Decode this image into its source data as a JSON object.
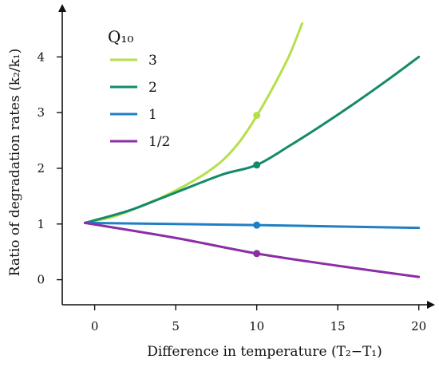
{
  "chart_data": {
    "type": "line",
    "xlabel": "Difference in temperature (T₂−T₁)",
    "ylabel": "Ratio of degradation rates (k₂/k₁)",
    "xlim": [
      -2,
      21
    ],
    "ylim": [
      -0.45,
      4.95
    ],
    "xticks": [
      0,
      5,
      10,
      15,
      20
    ],
    "yticks": [
      0,
      1,
      2,
      3,
      4
    ],
    "grid": false,
    "legend_title": "Q₁₀",
    "legend_position": "top-left",
    "series": [
      {
        "name": "3",
        "color": "#b5e04a",
        "x": [
          -0.6,
          1,
          2,
          3,
          4,
          5,
          6,
          7,
          8,
          9,
          10,
          11,
          12,
          12.8
        ],
        "y": [
          1.02,
          1.12,
          1.22,
          1.34,
          1.46,
          1.6,
          1.76,
          1.94,
          2.17,
          2.5,
          2.94,
          3.45,
          4.02,
          4.6
        ],
        "marker": {
          "x": 10,
          "y": 2.95
        }
      },
      {
        "name": "2",
        "color": "#148a6a",
        "x": [
          -0.6,
          2,
          4,
          6,
          8,
          10,
          12,
          14,
          16,
          18,
          20
        ],
        "y": [
          1.02,
          1.23,
          1.45,
          1.68,
          1.9,
          2.06,
          2.4,
          2.77,
          3.16,
          3.57,
          4.0
        ],
        "marker": {
          "x": 10,
          "y": 2.06
        }
      },
      {
        "name": "1",
        "color": "#1f7fc4",
        "x": [
          -0.6,
          10,
          20
        ],
        "y": [
          1.02,
          0.98,
          0.93
        ],
        "marker": {
          "x": 10,
          "y": 0.98
        }
      },
      {
        "name": "1/2",
        "color": "#8a2fa6",
        "x": [
          -0.6,
          5,
          10,
          15,
          20
        ],
        "y": [
          1.02,
          0.75,
          0.47,
          0.25,
          0.05
        ],
        "marker": {
          "x": 10,
          "y": 0.47
        }
      }
    ]
  }
}
